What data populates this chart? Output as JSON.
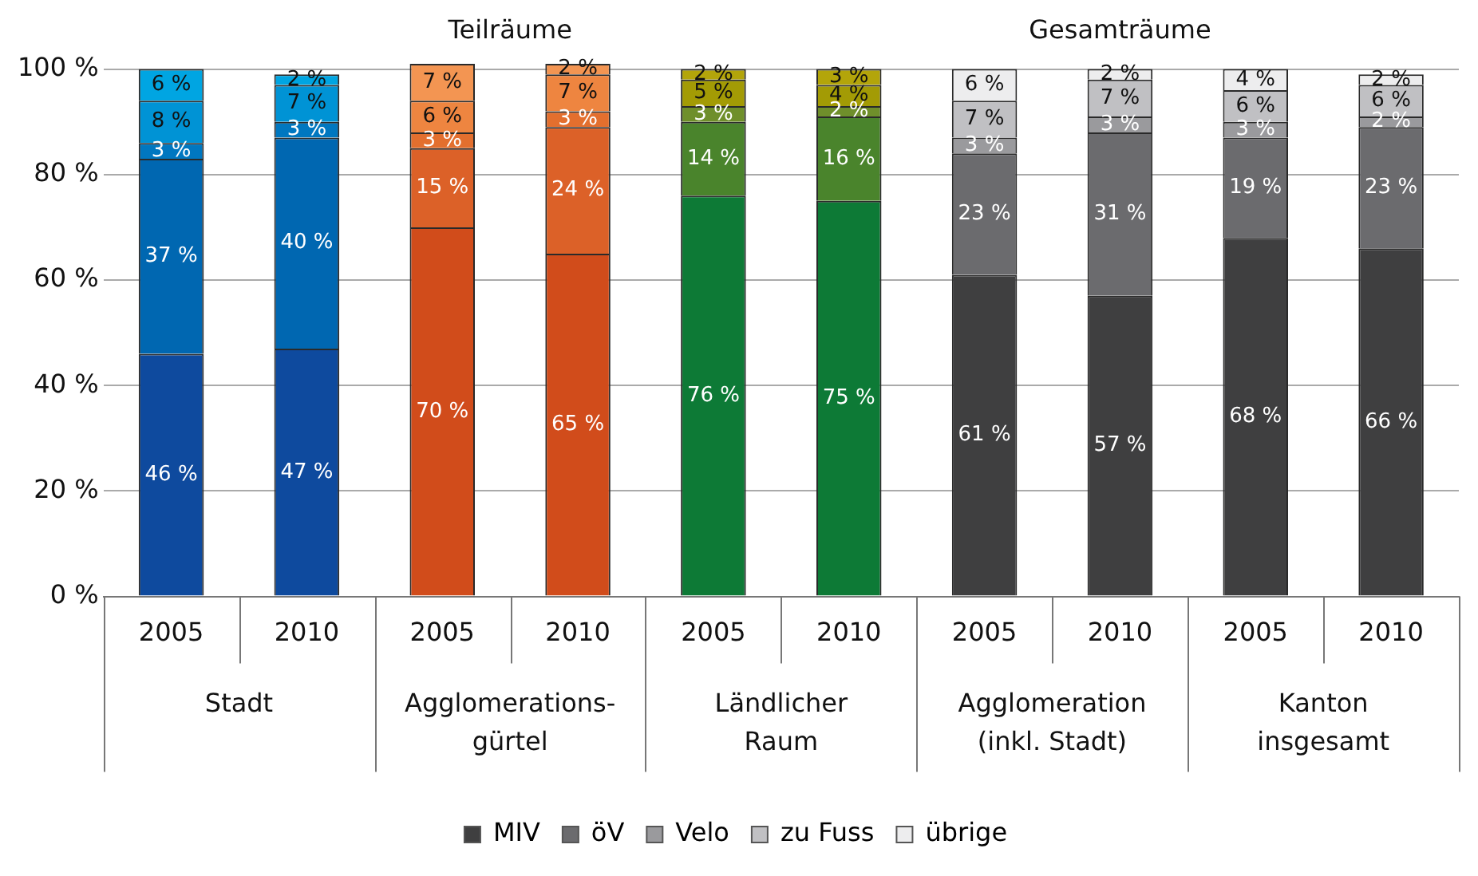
{
  "chart_data": {
    "type": "bar",
    "stacked": true,
    "categories": [
      "2005",
      "2010",
      "2005",
      "2010",
      "2005",
      "2010",
      "2005",
      "2010",
      "2005",
      "2010"
    ],
    "series": [
      {
        "name": "MIV",
        "colors": [
          "#0e4a9e",
          "#0e4a9e",
          "#d14c1b",
          "#d14c1b",
          "#0d7a36",
          "#0d7a36",
          "#3f3f40",
          "#3f3f40",
          "#3f3f40",
          "#3f3f40"
        ],
        "values": [
          46,
          47,
          70,
          65,
          76,
          75,
          61,
          57,
          68,
          66
        ],
        "value_labels": [
          "46 %",
          "47 %",
          "70 %",
          "65 %",
          "76 %",
          "75 %",
          "61 %",
          "57 %",
          "68 %",
          "66 %"
        ]
      },
      {
        "name": "öV",
        "colors": [
          "#0067b1",
          "#0067b1",
          "#dc6128",
          "#dc6128",
          "#4a842c",
          "#4a842c",
          "#6b6b6e",
          "#6b6b6e",
          "#6b6b6e",
          "#6b6b6e"
        ],
        "values": [
          37,
          40,
          15,
          24,
          14,
          16,
          23,
          31,
          19,
          23
        ],
        "value_labels": [
          "37 %",
          "40 %",
          "15 %",
          "24 %",
          "14 %",
          "16 %",
          "23 %",
          "31 %",
          "19 %",
          "23 %"
        ]
      },
      {
        "name": "Velo",
        "colors": [
          "#0077c0",
          "#0077c0",
          "#e36f2e",
          "#e36f2e",
          "#6f8f2b",
          "#6f8f2b",
          "#9a9a9d",
          "#9a9a9d",
          "#9a9a9d",
          "#9a9a9d"
        ],
        "values": [
          3,
          3,
          3,
          3,
          3,
          2,
          3,
          3,
          3,
          2
        ],
        "value_labels": [
          "3 %",
          "3 %",
          "3 %",
          "3 %",
          "3 %",
          "2 %",
          "3 %",
          "3 %",
          "3 %",
          "2 %"
        ]
      },
      {
        "name": "zu Fuss",
        "colors": [
          "#0093d5",
          "#0093d5",
          "#ee8540",
          "#ee8540",
          "#a39b05",
          "#a39b05",
          "#c0c0c3",
          "#c0c0c3",
          "#c0c0c3",
          "#c0c0c3"
        ],
        "values": [
          8,
          7,
          6,
          7,
          5,
          4,
          7,
          7,
          6,
          6
        ],
        "value_labels": [
          "8 %",
          "7 %",
          "6 %",
          "7 %",
          "5 %",
          "4 %",
          "7 %",
          "7 %",
          "6 %",
          "6 %"
        ]
      },
      {
        "name": "übrige",
        "colors": [
          "#00a5e2",
          "#00a5e2",
          "#f39552",
          "#f39552",
          "#b3a50a",
          "#b3a50a",
          "#ededee",
          "#ededee",
          "#ededee",
          "#ededee"
        ],
        "values": [
          6,
          2,
          7,
          2,
          2,
          3,
          6,
          2,
          4,
          2
        ],
        "value_labels": [
          "6 %",
          "2 %",
          "7 %",
          "2 %",
          "2 %",
          "3 %",
          "6 %",
          "2 %",
          "4 %",
          "2 %"
        ]
      }
    ],
    "ylim": [
      0,
      101
    ],
    "yticks": [
      {
        "value": 0,
        "label": "0 %"
      },
      {
        "value": 20,
        "label": "20 %"
      },
      {
        "value": 40,
        "label": "40 %"
      },
      {
        "value": 60,
        "label": "60 %"
      },
      {
        "value": 80,
        "label": "80 %"
      },
      {
        "value": 100,
        "label": "100 %"
      }
    ],
    "grid": "y",
    "legend": "bottom",
    "annotations": [
      "Teilräume",
      "Gesamträume",
      "Stadt",
      "Agglomerations-\ngürtel",
      "Ländlicher\nRaum",
      "Agglomeration\n(inkl. Stadt)",
      "Kanton\ninsgesamt"
    ]
  }
}
